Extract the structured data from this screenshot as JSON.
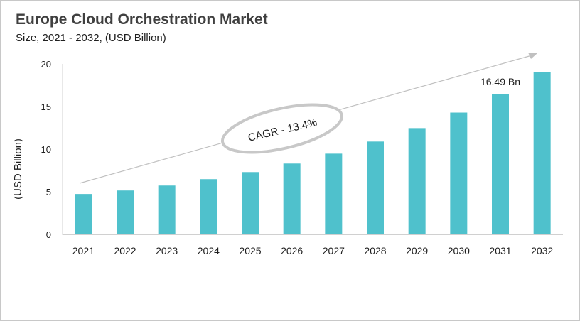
{
  "chart_data": {
    "type": "bar",
    "title": "Europe Cloud Orchestration Market",
    "subtitle": "Size, 2021 - 2032, (USD Billion)",
    "xlabel": "",
    "ylabel": "(USD Billion)",
    "categories": [
      "2021",
      "2022",
      "2023",
      "2024",
      "2025",
      "2026",
      "2027",
      "2028",
      "2029",
      "2030",
      "2031",
      "2032"
    ],
    "values": [
      4.74,
      5.15,
      5.73,
      6.48,
      7.31,
      8.31,
      9.47,
      10.89,
      12.47,
      14.29,
      16.49,
      19.03
    ],
    "ylim": [
      0,
      20
    ],
    "yticks": [
      0,
      5,
      10,
      15,
      20
    ],
    "grid": false,
    "bar_color": "#4fc1cc",
    "annotations": {
      "cagr": "CAGR - 13.4%",
      "value_label": "16.49 Bn",
      "value_label_category": "2031"
    }
  }
}
